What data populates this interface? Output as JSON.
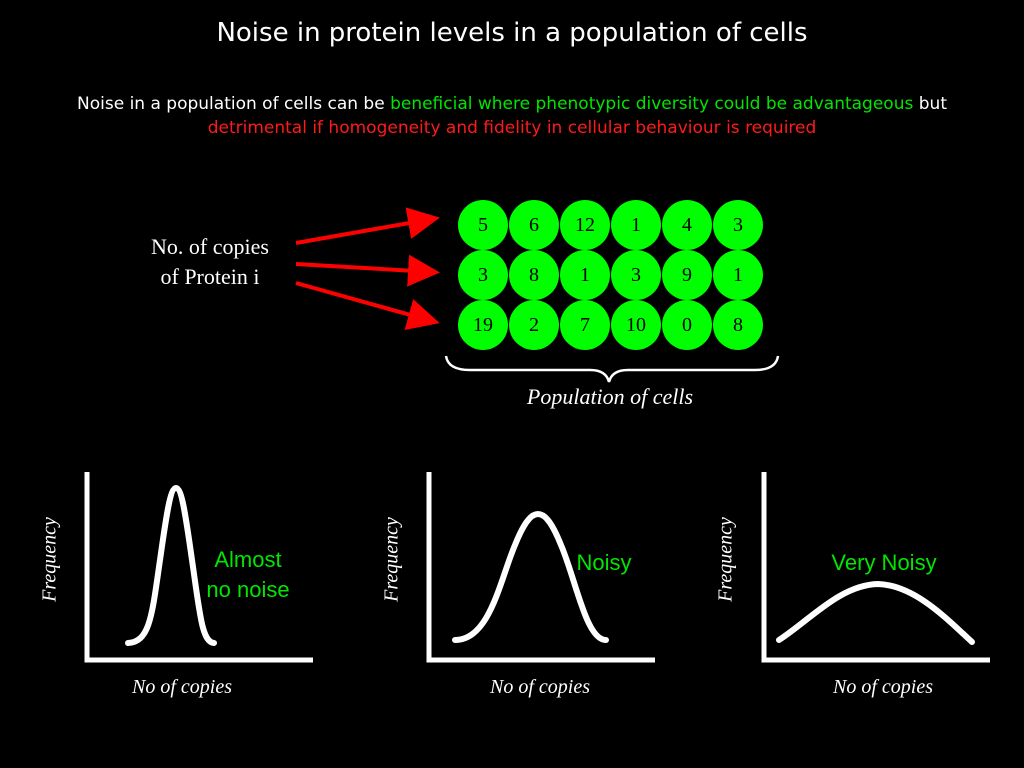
{
  "title": "Noise in protein levels in a population of cells",
  "subtitle": {
    "part1": "Noise in a population of cells can be ",
    "part2_green": "beneficial where phenotypic diversity could be advantageous",
    "part3": " but ",
    "part4_red": "detrimental if homogeneity and fidelity in cellular behaviour is required"
  },
  "protein_label": {
    "line1": "No. of copies",
    "line2": "of Protein i"
  },
  "cells": {
    "row1": [
      "5",
      "6",
      "12",
      "1",
      "4",
      "3"
    ],
    "row2": [
      "3",
      "8",
      "1",
      "3",
      "9",
      "1"
    ],
    "row3": [
      "19",
      "2",
      "7",
      "10",
      "0",
      "8"
    ]
  },
  "population_label": "Population of cells",
  "plots": [
    {
      "xlabel": "No of  copies",
      "ylabel": "Frequency",
      "label_line1": "Almost",
      "label_line2": "no noise"
    },
    {
      "xlabel": "No of  copies",
      "ylabel": "Frequency",
      "label_line1": "Noisy",
      "label_line2": ""
    },
    {
      "xlabel": "No of  copies",
      "ylabel": "Frequency",
      "label_line1": "Very Noisy",
      "label_line2": ""
    }
  ],
  "colors": {
    "cell_fill": "#00ff00",
    "arrow": "#ff0000",
    "green_text": "#00e600",
    "red_text": "#ff1a1a"
  }
}
